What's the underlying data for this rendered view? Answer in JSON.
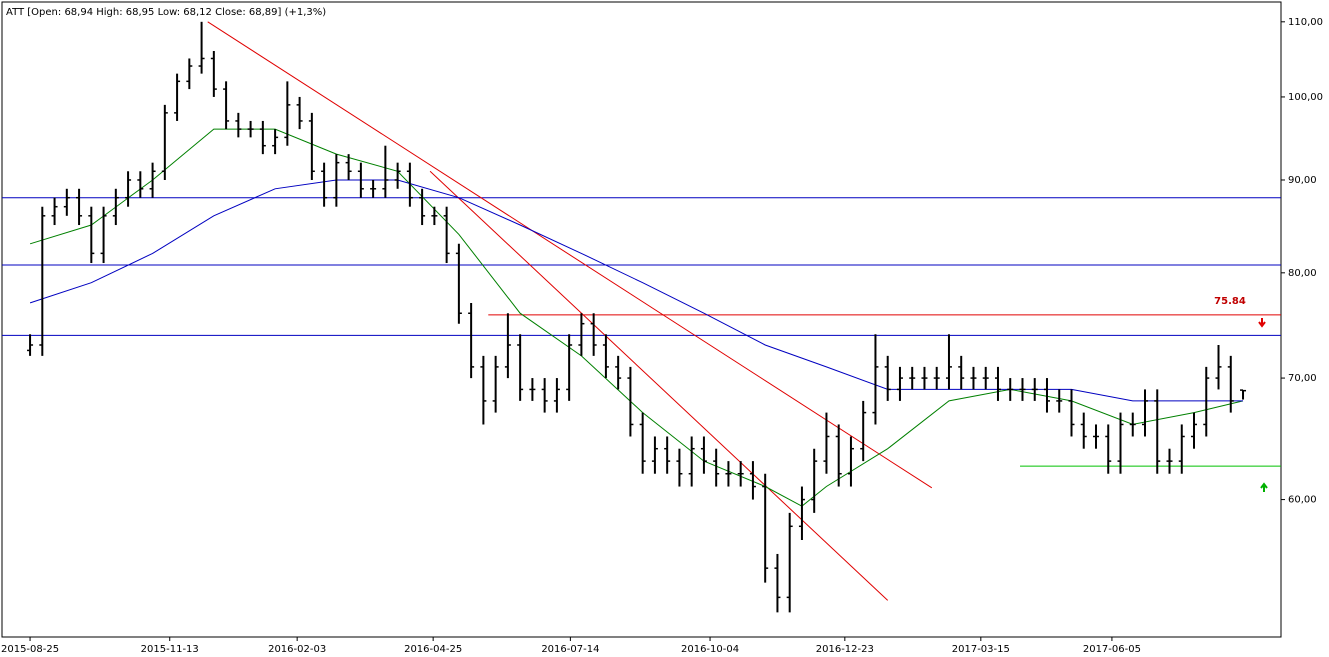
{
  "chart_data": {
    "type": "ohlc",
    "title": "ATT [Open: 68,94  High: 68,95  Low: 68,12  Close: 68,89] (+1,3%)",
    "log_scale": true,
    "bar_color": "#000000",
    "open": [
      72.5,
      73,
      86,
      87,
      88,
      86,
      82,
      86,
      88,
      90,
      89,
      91,
      98,
      102,
      104,
      105,
      101,
      97,
      96,
      96,
      94,
      95,
      99,
      97,
      91,
      88,
      92,
      91,
      89,
      89,
      90,
      91,
      88,
      86,
      86,
      82,
      76,
      71,
      68,
      71,
      73,
      69,
      69,
      68,
      69,
      73,
      75,
      73,
      71,
      70,
      66,
      63,
      64,
      63,
      62,
      64,
      63,
      62,
      62,
      62,
      61,
      55,
      53,
      58,
      60,
      63,
      65,
      62,
      64,
      67,
      71,
      69,
      70,
      70,
      70,
      70,
      71,
      70,
      70,
      70,
      69,
      69,
      69,
      69,
      68,
      68,
      66,
      65,
      65,
      63,
      66,
      66,
      68,
      63,
      63,
      65,
      66,
      70,
      71,
      68.94
    ],
    "high": [
      74,
      87,
      88,
      89,
      89,
      87,
      87,
      89,
      91,
      91,
      92,
      99,
      103,
      105,
      110,
      106,
      102,
      98,
      97,
      97,
      96,
      102,
      100,
      98,
      92,
      93,
      93,
      92,
      90,
      94,
      92,
      92,
      89,
      87,
      87,
      83,
      77,
      72,
      72,
      76,
      74,
      70,
      70,
      70,
      74,
      76,
      76,
      74,
      72,
      71,
      67,
      65,
      65,
      64,
      65,
      65,
      64,
      63,
      63,
      63,
      62,
      56,
      59,
      61,
      64,
      67,
      66,
      65,
      68,
      74,
      72,
      71,
      71,
      71,
      71,
      74,
      72,
      71,
      71,
      71,
      70,
      70,
      70,
      70,
      69,
      69,
      67,
      66,
      66,
      67,
      67,
      69,
      69,
      64,
      66,
      67,
      71,
      73,
      72,
      68.95
    ],
    "low": [
      72,
      72,
      85,
      86,
      85,
      81,
      81,
      85,
      87,
      88,
      88,
      90,
      97,
      101,
      103,
      100,
      96,
      95,
      95,
      93,
      93,
      94,
      96,
      90,
      87,
      87,
      90,
      88,
      88,
      88,
      89,
      87,
      85,
      85,
      81,
      75,
      70,
      66,
      67,
      70,
      68,
      68,
      67,
      67,
      68,
      72,
      72,
      70,
      69,
      65,
      62,
      62,
      62,
      61,
      61,
      62,
      61,
      61,
      61,
      60,
      54,
      52,
      52,
      57,
      59,
      62,
      61,
      61,
      63,
      66,
      68,
      68,
      69,
      69,
      69,
      69,
      69,
      69,
      69,
      68,
      68,
      68,
      68,
      67,
      67,
      65,
      64,
      64,
      62,
      62,
      65,
      65,
      62,
      62,
      62,
      64,
      65,
      69,
      67,
      68.12
    ],
    "close": [
      73,
      86,
      87,
      88,
      86,
      82,
      86,
      88,
      90,
      89,
      91,
      98,
      102,
      104,
      105,
      101,
      97,
      96,
      96,
      94,
      95,
      99,
      97,
      91,
      88,
      92,
      91,
      89,
      89,
      90,
      91,
      88,
      86,
      86,
      82,
      76,
      71,
      68,
      71,
      73,
      69,
      69,
      68,
      69,
      73,
      75,
      73,
      71,
      70,
      66,
      63,
      64,
      63,
      62,
      64,
      63,
      62,
      62,
      62,
      61,
      55,
      53,
      58,
      60,
      63,
      65,
      62,
      64,
      67,
      71,
      69,
      70,
      70,
      70,
      70,
      71,
      70,
      70,
      70,
      69,
      69,
      69,
      69,
      68,
      68,
      66,
      65,
      65,
      63,
      66,
      66,
      68,
      63,
      63,
      65,
      66,
      70,
      71,
      68,
      68.89
    ],
    "series": [
      {
        "color": "#008000",
        "x": [
          0,
          5,
          10,
          15,
          20,
          25,
          30,
          35,
          40,
          45,
          50,
          55,
          60,
          63,
          65,
          70,
          75,
          80,
          85,
          90,
          95,
          99
        ],
        "values": [
          83,
          85,
          90,
          96,
          96,
          93,
          91,
          84,
          76,
          72,
          67,
          63,
          61,
          59.5,
          61,
          64,
          68,
          69,
          68,
          66,
          67,
          68
        ]
      },
      {
        "color": "#0000c0",
        "x": [
          0,
          5,
          10,
          15,
          20,
          25,
          30,
          35,
          40,
          45,
          50,
          55,
          60,
          65,
          70,
          75,
          80,
          85,
          90,
          95,
          99
        ],
        "values": [
          77,
          79,
          82,
          86,
          89,
          90,
          90,
          88,
          85,
          82,
          79,
          76,
          73,
          71,
          69,
          69,
          69,
          69,
          68,
          68,
          68
        ]
      }
    ],
    "hlines": [
      {
        "value": 88,
        "color": "#0000c0"
      },
      {
        "value": 80.8,
        "color": "#0000c0"
      },
      {
        "value": 73.9,
        "color": "#0000c0"
      }
    ],
    "levels": [
      {
        "value": 75.84,
        "x_start": 37.4,
        "color": "#e00000",
        "label_color": "#c00000"
      },
      {
        "value": 62.6,
        "x_start": 80.8,
        "color": "#00c000"
      }
    ],
    "trendlines": [
      {
        "x": [
          14.5,
          73.6
        ],
        "values": [
          110,
          60.9
        ],
        "color": "#e00000"
      },
      {
        "x": [
          32.65,
          70.0
        ],
        "values": [
          91,
          52.8
        ],
        "color": "#e00000"
      }
    ],
    "xlim": [
      -2.29,
      102.1
    ],
    "xticks": [
      {
        "value": 0,
        "label": "2015-08-25"
      },
      {
        "value": 11.4,
        "label": "2015-11-13"
      },
      {
        "value": 21.8,
        "label": "2016-02-03"
      },
      {
        "value": 32.9,
        "label": "2016-04-25"
      },
      {
        "value": 44.1,
        "label": "2016-07-14"
      },
      {
        "value": 55.5,
        "label": "2016-10-04"
      },
      {
        "value": 66.5,
        "label": "2016-12-23"
      },
      {
        "value": 77.6,
        "label": "2017-03-15"
      },
      {
        "value": 88.3,
        "label": "2017-06-05"
      }
    ],
    "ylim": [
      50.4,
      112.8
    ],
    "yticks": [
      {
        "value": 60,
        "label": "60,00"
      },
      {
        "value": 70,
        "label": "70,00"
      },
      {
        "value": 80,
        "label": "80,00"
      },
      {
        "value": 90,
        "label": "90,00"
      },
      {
        "value": 100,
        "label": "100,00"
      },
      {
        "value": 110,
        "label": "110,00"
      }
    ]
  }
}
